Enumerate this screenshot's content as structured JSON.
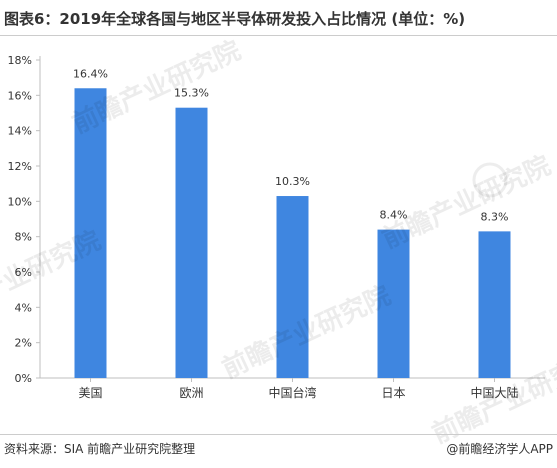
{
  "title": "图表6：2019年全球各国与地区半导体研发投入占比情况 (单位：%)",
  "source": "资料来源：SIA 前瞻产业研究院整理",
  "credit": "@前瞻经济学人APP",
  "watermark_text": "前瞻产业研究院",
  "colors": {
    "bar": "#3f86e0",
    "axis": "#bfbfbf",
    "text": "#333333"
  },
  "chart_data": {
    "type": "bar",
    "title": "图表6：2019年全球各国与地区半导体研发投入占比情况 (单位：%)",
    "xlabel": "",
    "ylabel": "",
    "categories": [
      "美国",
      "欧洲",
      "中国台湾",
      "日本",
      "中国大陆"
    ],
    "values": [
      16.4,
      15.3,
      10.3,
      8.4,
      8.3
    ],
    "data_labels": [
      "16.4%",
      "15.3%",
      "10.3%",
      "8.4%",
      "8.3%"
    ],
    "ylim": [
      0,
      18
    ],
    "yticks": [
      0,
      2,
      4,
      6,
      8,
      10,
      12,
      14,
      16,
      18
    ],
    "ytick_labels": [
      "0%",
      "2%",
      "4%",
      "6%",
      "8%",
      "10%",
      "12%",
      "14%",
      "16%",
      "18%"
    ],
    "grid": false,
    "legend": "none"
  }
}
